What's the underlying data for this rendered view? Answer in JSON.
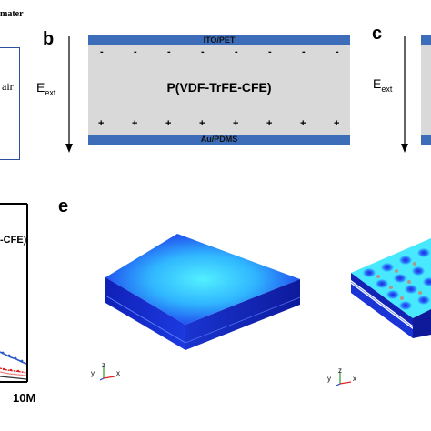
{
  "panel_a": {
    "eps_mater": "mater",
    "eps_air": "air"
  },
  "panel_b": {
    "label": "b",
    "top_electrode": "ITO/PET",
    "bottom_electrode": "Au/PDMS",
    "material": "P(VDF-TrFE-CFE)",
    "field": "E",
    "field_sub": "ext",
    "neg_sign": "-",
    "pos_sign": "+"
  },
  "panel_c": {
    "label": "c",
    "field": "E",
    "field_sub": "ext"
  },
  "panel_d": {
    "legend": "-CFE)",
    "x_end_tick": "10M"
  },
  "panel_e": {
    "label": "e",
    "axis_y": "y",
    "axis_z": "z",
    "axis_x": "x"
  },
  "colors": {
    "electrode": "#3d6db8",
    "dielectric": "#d9d9d9",
    "slab_blue": "#1b2fe0",
    "field_cyan": "#33e0ff"
  }
}
